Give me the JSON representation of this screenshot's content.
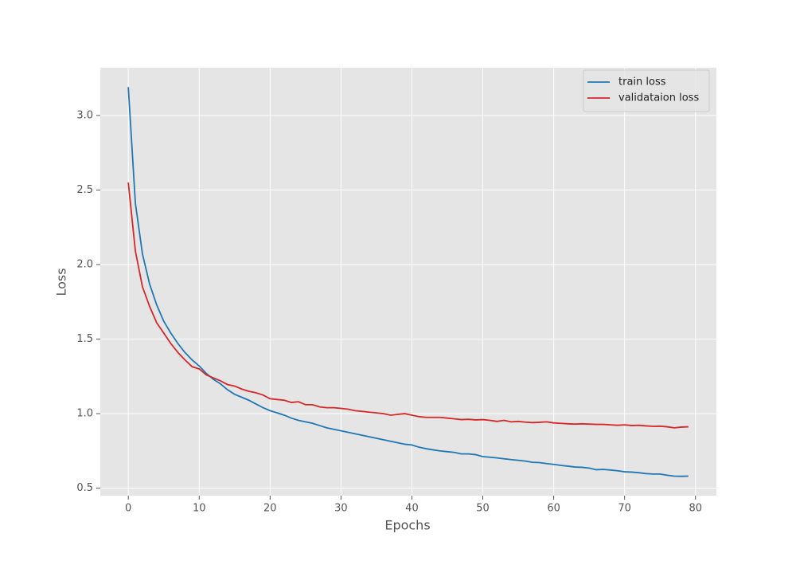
{
  "chart_data": {
    "type": "line",
    "xlabel": "Epochs",
    "ylabel": "Loss",
    "x": [
      0,
      1,
      2,
      3,
      4,
      5,
      6,
      7,
      8,
      9,
      10,
      11,
      12,
      13,
      14,
      15,
      16,
      17,
      18,
      19,
      20,
      21,
      22,
      23,
      24,
      25,
      26,
      27,
      28,
      29,
      30,
      31,
      32,
      33,
      34,
      35,
      36,
      37,
      38,
      39,
      40,
      41,
      42,
      43,
      44,
      45,
      46,
      47,
      48,
      49,
      50,
      51,
      52,
      53,
      54,
      55,
      56,
      57,
      58,
      59,
      60,
      61,
      62,
      63,
      64,
      65,
      66,
      67,
      68,
      69,
      70,
      71,
      72,
      73,
      74,
      75,
      76,
      77,
      78,
      79
    ],
    "series": [
      {
        "name": "train loss",
        "color": "#1f77b4",
        "values": [
          3.19,
          2.41,
          2.07,
          1.87,
          1.73,
          1.62,
          1.54,
          1.47,
          1.41,
          1.36,
          1.32,
          1.27,
          1.23,
          1.2,
          1.16,
          1.13,
          1.11,
          1.09,
          1.065,
          1.04,
          1.02,
          1.005,
          0.99,
          0.97,
          0.955,
          0.945,
          0.935,
          0.92,
          0.905,
          0.895,
          0.885,
          0.875,
          0.865,
          0.855,
          0.845,
          0.835,
          0.825,
          0.815,
          0.805,
          0.795,
          0.79,
          0.775,
          0.765,
          0.757,
          0.75,
          0.745,
          0.74,
          0.73,
          0.73,
          0.725,
          0.712,
          0.708,
          0.703,
          0.697,
          0.692,
          0.687,
          0.682,
          0.674,
          0.672,
          0.665,
          0.66,
          0.653,
          0.648,
          0.642,
          0.64,
          0.635,
          0.624,
          0.626,
          0.622,
          0.617,
          0.61,
          0.608,
          0.604,
          0.598,
          0.595,
          0.595,
          0.587,
          0.581,
          0.58,
          0.581
        ]
      },
      {
        "name": "validataion loss",
        "color": "#d62728",
        "values": [
          2.55,
          2.09,
          1.85,
          1.72,
          1.61,
          1.54,
          1.47,
          1.41,
          1.36,
          1.315,
          1.3,
          1.26,
          1.24,
          1.22,
          1.195,
          1.185,
          1.165,
          1.15,
          1.14,
          1.125,
          1.1,
          1.095,
          1.09,
          1.075,
          1.08,
          1.06,
          1.06,
          1.045,
          1.04,
          1.04,
          1.035,
          1.03,
          1.02,
          1.015,
          1.01,
          1.005,
          1.0,
          0.99,
          0.995,
          1.0,
          0.99,
          0.98,
          0.975,
          0.975,
          0.975,
          0.97,
          0.965,
          0.96,
          0.962,
          0.958,
          0.96,
          0.955,
          0.948,
          0.955,
          0.945,
          0.948,
          0.943,
          0.94,
          0.942,
          0.945,
          0.938,
          0.935,
          0.932,
          0.93,
          0.932,
          0.93,
          0.928,
          0.928,
          0.925,
          0.922,
          0.925,
          0.92,
          0.922,
          0.918,
          0.915,
          0.916,
          0.912,
          0.905,
          0.91,
          0.912
        ]
      }
    ],
    "xlim": [
      -3.95,
      82.95
    ],
    "xticks": [
      0,
      10,
      20,
      30,
      40,
      50,
      60,
      70,
      80
    ],
    "ylim": [
      0.45,
      3.32
    ],
    "yticks": [
      0.5,
      {
        "value": 1.0,
        "label": "1.0"
      },
      1.5,
      {
        "value": 2.0,
        "label": "2.0"
      },
      2.5,
      {
        "value": 3.0,
        "label": "3.0"
      }
    ],
    "grid": true,
    "legend": "upper right"
  }
}
